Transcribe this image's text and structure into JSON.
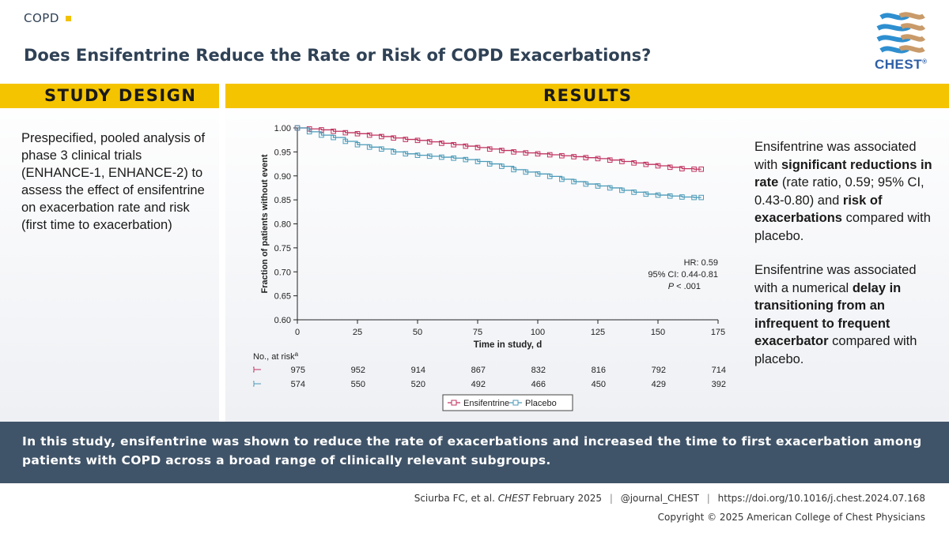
{
  "header": {
    "topic": "COPD",
    "title": "Does Ensifentrine Reduce the Rate or Risk of COPD Exacerbations?",
    "logo_text": "CHEST",
    "logo_mark": "®"
  },
  "study_design": {
    "heading": "STUDY DESIGN",
    "text": "Prespecified, pooled analysis of phase 3 clinical trials (ENHANCE-1, ENHANCE-2) to assess the effect of ensifentrine on exacerbation rate and risk (first time to exacerbation)"
  },
  "results": {
    "heading": "RESULTS",
    "statements": [
      [
        {
          "t": "Ensifentrine was associated with ",
          "b": false
        },
        {
          "t": "significant reductions in rate",
          "b": true
        },
        {
          "t": " (rate ratio, 0.59; 95% CI, 0.43-0.80) and ",
          "b": false
        },
        {
          "t": "risk of exacerbations",
          "b": true
        },
        {
          "t": " compared with placebo.",
          "b": false
        }
      ],
      [
        {
          "t": "Ensifentrine was associated with a numerical ",
          "b": false
        },
        {
          "t": "delay in transitioning from an infrequent to frequent exacerbator",
          "b": true
        },
        {
          "t": " compared with placebo.",
          "b": false
        }
      ]
    ]
  },
  "chart_data": {
    "type": "line",
    "step": true,
    "xlabel": "Time in study, d",
    "ylabel": "Fraction of patients without event",
    "xlim": [
      0,
      175
    ],
    "ylim": [
      0.6,
      1.0
    ],
    "xticks": [
      0,
      25,
      50,
      75,
      100,
      125,
      150,
      175
    ],
    "yticks": [
      "0.60",
      "0.65",
      "0.70",
      "0.75",
      "0.80",
      "0.85",
      "0.90",
      "0.95",
      "1.00"
    ],
    "colors": {
      "ensifentrine": "#c0335f",
      "placebo": "#4a9ab8"
    },
    "annotation": {
      "hr": "HR: 0.59",
      "ci": "95% CI: 0.44-0.81",
      "p_italic": "P",
      "p_rest": " < .001"
    },
    "series": [
      {
        "name": "Ensifentrine",
        "x": [
          0,
          5,
          10,
          15,
          20,
          25,
          30,
          35,
          40,
          45,
          50,
          55,
          60,
          65,
          70,
          75,
          80,
          85,
          90,
          95,
          100,
          105,
          110,
          115,
          120,
          125,
          130,
          135,
          140,
          145,
          150,
          155,
          160,
          165,
          168
        ],
        "y": [
          1.0,
          0.998,
          0.996,
          0.993,
          0.99,
          0.988,
          0.985,
          0.982,
          0.979,
          0.976,
          0.974,
          0.971,
          0.968,
          0.965,
          0.962,
          0.959,
          0.956,
          0.953,
          0.95,
          0.948,
          0.946,
          0.944,
          0.942,
          0.94,
          0.938,
          0.936,
          0.933,
          0.93,
          0.927,
          0.924,
          0.921,
          0.918,
          0.915,
          0.914,
          0.914
        ]
      },
      {
        "name": "Placebo",
        "x": [
          0,
          5,
          10,
          15,
          20,
          25,
          30,
          35,
          40,
          45,
          50,
          55,
          60,
          65,
          70,
          75,
          80,
          85,
          90,
          95,
          100,
          105,
          110,
          115,
          120,
          125,
          130,
          135,
          140,
          145,
          150,
          155,
          160,
          165,
          168
        ],
        "y": [
          1.0,
          0.992,
          0.985,
          0.98,
          0.972,
          0.965,
          0.96,
          0.956,
          0.95,
          0.946,
          0.943,
          0.941,
          0.939,
          0.937,
          0.934,
          0.93,
          0.925,
          0.92,
          0.913,
          0.908,
          0.904,
          0.899,
          0.893,
          0.888,
          0.883,
          0.879,
          0.875,
          0.87,
          0.866,
          0.862,
          0.86,
          0.858,
          0.856,
          0.855,
          0.855
        ]
      }
    ],
    "at_risk": {
      "label": "No., at risk",
      "label_sup": "a",
      "rows": [
        {
          "series": "Ensifentrine",
          "values": [
            "975",
            "952",
            "914",
            "867",
            "832",
            "816",
            "792",
            "714"
          ]
        },
        {
          "series": "Placebo",
          "values": [
            "574",
            "550",
            "520",
            "492",
            "466",
            "450",
            "429",
            "392"
          ]
        }
      ]
    },
    "legend": [
      "Ensifentrine",
      "Placebo"
    ],
    "legend_position": "bottom"
  },
  "footer": {
    "summary": "In this study, ensifentrine was shown to reduce the rate of exacerbations and increased the time to first exacerbation among patients with COPD across a broad range of clinically relevant subgroups.",
    "citation_pre": "Sciurba FC, et al. ",
    "citation_journal": "CHEST",
    "citation_date": " February 2025",
    "separator": "|",
    "handle": "@journal_CHEST",
    "doi": "https://doi.org/10.1016/j.chest.2024.07.168",
    "copyright": "Copyright © 2025 American College of Chest Physicians"
  }
}
